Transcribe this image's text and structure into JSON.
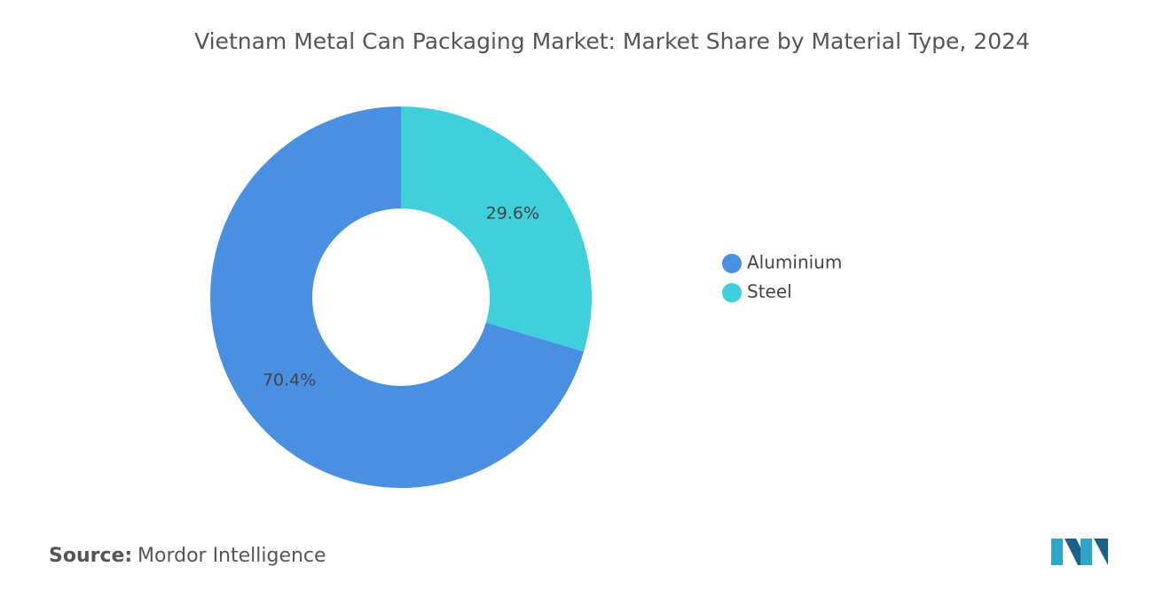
{
  "chart_data": {
    "type": "donut",
    "title": "Vietnam Metal Can Packaging Market: Market Share by Material Type, 2024",
    "categories": [
      "Aluminium",
      "Steel"
    ],
    "values": [
      70.4,
      29.6
    ],
    "value_labels": [
      "70.4%",
      "29.6%"
    ],
    "colors": [
      "#4a90e2",
      "#40d0dc"
    ],
    "legend": "right",
    "source_label": "Source:",
    "source": "Mordor Intelligence"
  }
}
